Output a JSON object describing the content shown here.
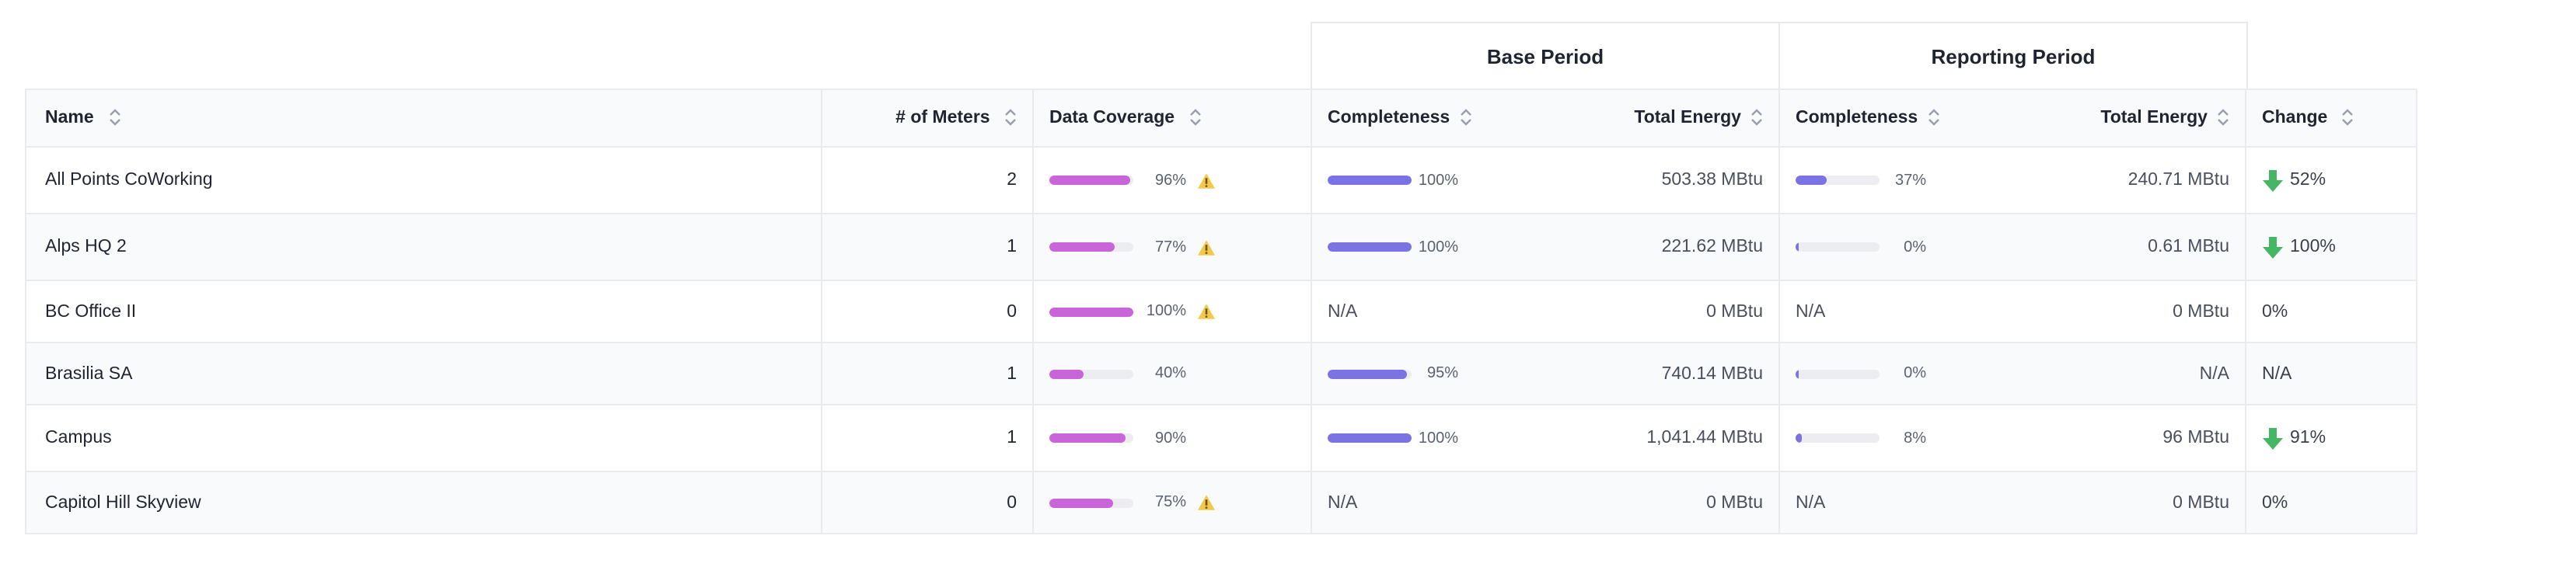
{
  "groups": {
    "base": "Base Period",
    "reporting": "Reporting Period"
  },
  "columns": {
    "name": "Name",
    "meters": "# of Meters",
    "coverage": "Data Coverage",
    "base_completeness": "Completeness",
    "base_energy": "Total Energy",
    "rep_completeness": "Completeness",
    "rep_energy": "Total Energy",
    "change": "Change"
  },
  "colors": {
    "coverage_bar": "#c965d9",
    "completeness_bar": "#7b73e3",
    "bar_track": "#ececf1",
    "warning": "#f2c94c",
    "down_arrow": "#45b764"
  },
  "icons": {
    "sort": "sort-icon",
    "warning": "warning-triangle-icon",
    "down": "arrow-down-icon"
  },
  "rows": [
    {
      "name": "All Points CoWorking",
      "meters": "2",
      "coverage": 96,
      "coverage_label": "96%",
      "coverage_warning": true,
      "base_completeness": 100,
      "base_completeness_label": "100%",
      "base_energy": "503.38 MBtu",
      "rep_completeness": 37,
      "rep_completeness_label": "37%",
      "rep_energy": "240.71 MBtu",
      "change": "52%",
      "change_down": true
    },
    {
      "name": "Alps HQ 2",
      "meters": "1",
      "coverage": 77,
      "coverage_label": "77%",
      "coverage_warning": true,
      "base_completeness": 100,
      "base_completeness_label": "100%",
      "base_energy": "221.62 MBtu",
      "rep_completeness": 0,
      "rep_completeness_label": "0%",
      "rep_energy": "0.61 MBtu",
      "change": "100%",
      "change_down": true
    },
    {
      "name": "BC Office II",
      "meters": "0",
      "coverage": 100,
      "coverage_label": "100%",
      "coverage_warning": true,
      "base_completeness": null,
      "base_completeness_label": "N/A",
      "base_energy": "0 MBtu",
      "rep_completeness": null,
      "rep_completeness_label": "N/A",
      "rep_energy": "0 MBtu",
      "change": "0%",
      "change_down": false
    },
    {
      "name": "Brasilia SA",
      "meters": "1",
      "coverage": 40,
      "coverage_label": "40%",
      "coverage_warning": false,
      "base_completeness": 95,
      "base_completeness_label": "95%",
      "base_energy": "740.14 MBtu",
      "rep_completeness": 0,
      "rep_completeness_label": "0%",
      "rep_energy": "N/A",
      "change": "N/A",
      "change_down": false
    },
    {
      "name": "Campus",
      "meters": "1",
      "coverage": 90,
      "coverage_label": "90%",
      "coverage_warning": false,
      "base_completeness": 100,
      "base_completeness_label": "100%",
      "base_energy": "1,041.44 MBtu",
      "rep_completeness": 8,
      "rep_completeness_label": "8%",
      "rep_energy": "96 MBtu",
      "change": "91%",
      "change_down": true
    },
    {
      "name": "Capitol Hill Skyview",
      "meters": "0",
      "coverage": 75,
      "coverage_label": "75%",
      "coverage_warning": true,
      "base_completeness": null,
      "base_completeness_label": "N/A",
      "base_energy": "0 MBtu",
      "rep_completeness": null,
      "rep_completeness_label": "N/A",
      "rep_energy": "0 MBtu",
      "change": "0%",
      "change_down": false
    }
  ]
}
